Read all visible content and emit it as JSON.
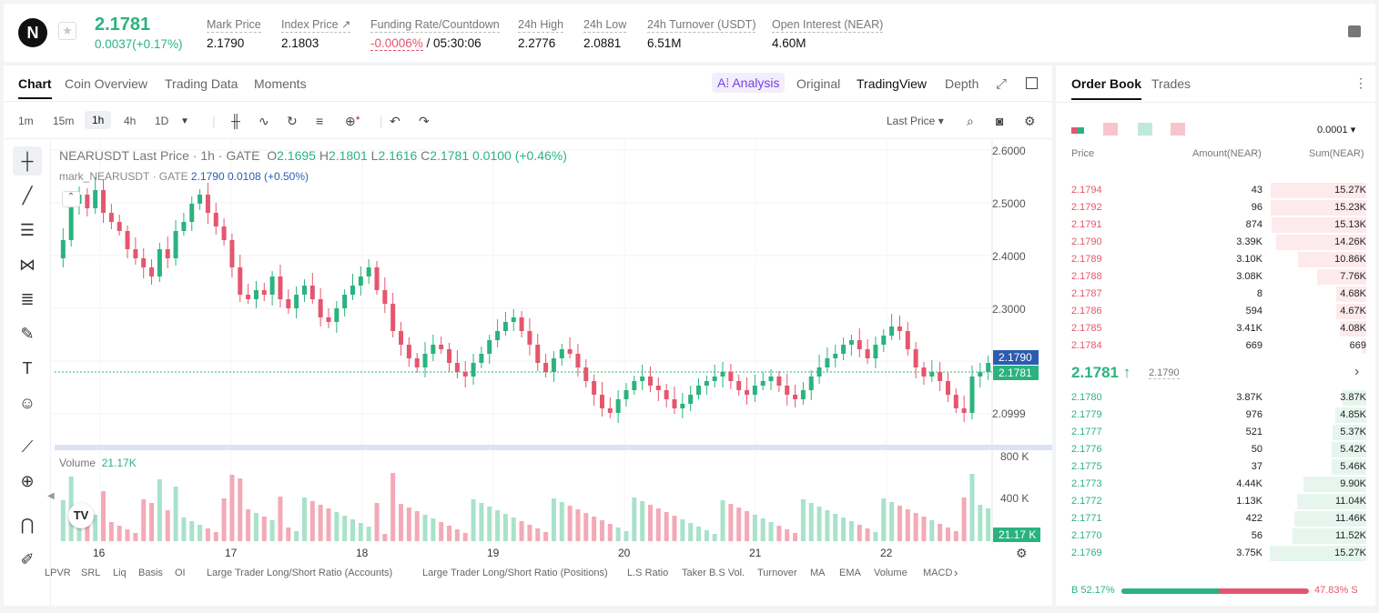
{
  "header": {
    "logo": "N",
    "last_price": "2.1781",
    "change": "0.0037(+0.17%)",
    "stats": [
      {
        "label": "Mark Price",
        "value": "2.1790",
        "x": 223
      },
      {
        "label": "Index Price ↗",
        "value": "2.1803",
        "x": 305
      },
      {
        "label": "Funding Rate/Countdown",
        "value_red": "-0.0006%",
        "value": " / 05:30:06",
        "x": 403
      },
      {
        "label": "24h High",
        "value": "2.2776",
        "x": 565
      },
      {
        "label": "24h Low",
        "value": "2.0881",
        "x": 637
      },
      {
        "label": "24h Turnover (USDT)",
        "value": "6.51M",
        "x": 707
      },
      {
        "label": "Open Interest (NEAR)",
        "value": "4.60M",
        "x": 844
      }
    ]
  },
  "tabs": [
    "Chart",
    "Coin Overview",
    "Trading Data",
    "Moments"
  ],
  "view_tabs": {
    "ai": "A⁞ Analysis",
    "original": "Original",
    "tradingview": "TradingView",
    "depth": "Depth"
  },
  "timeframes": [
    "1m",
    "15m",
    "1h",
    "4h",
    "1D"
  ],
  "last_price_select": "Last Price",
  "legend": {
    "symbol": "NEARUSDT Last Price · 1h · GATE",
    "o": "2.1695",
    "h": "2.1801",
    "l": "2.1616",
    "c": "2.1781",
    "chg": "0.0100 (+0.46%)",
    "mark": "mark_NEARUSDT · GATE",
    "mark_val": "2.1790  0.0108  (+0.50%)"
  },
  "y_axis": [
    "2.6000",
    "2.5000",
    "2.4000",
    "2.3000",
    "2.0999"
  ],
  "price_labels": {
    "mark": "2.1790",
    "last": "2.1781"
  },
  "volume": {
    "label": "Volume",
    "value": "21.17K",
    "axis": [
      "800 K",
      "400 K"
    ],
    "tag": "21.17 K"
  },
  "x_axis": [
    "16",
    "17",
    "18",
    "19",
    "20",
    "21",
    "22"
  ],
  "indicators": [
    "LPVR",
    "SRL",
    "Liq",
    "Basis",
    "OI",
    "Large Trader Long/Short Ratio (Accounts)",
    "Large Trader Long/Short Ratio (Positions)",
    "L.S Ratio",
    "Taker B.S Vol.",
    "Turnover",
    "MA",
    "EMA",
    "Volume",
    "MACD"
  ],
  "orderbook": {
    "tabs": [
      "Order Book",
      "Trades"
    ],
    "precision": "0.0001",
    "headers": [
      "Price",
      "Amount(NEAR)",
      "Sum(NEAR)"
    ],
    "asks": [
      [
        "2.1794",
        "43",
        "15.27K",
        0.99
      ],
      [
        "2.1792",
        "96",
        "15.23K",
        0.99
      ],
      [
        "2.1791",
        "874",
        "15.13K",
        0.98
      ],
      [
        "2.1790",
        "3.39K",
        "14.26K",
        0.93
      ],
      [
        "2.1789",
        "3.10K",
        "10.86K",
        0.71
      ],
      [
        "2.1788",
        "3.08K",
        "7.76K",
        0.51
      ],
      [
        "2.1787",
        "8",
        "4.68K",
        0.31
      ],
      [
        "2.1786",
        "594",
        "4.67K",
        0.31
      ],
      [
        "2.1785",
        "3.41K",
        "4.08K",
        0.27
      ],
      [
        "2.1784",
        "669",
        "669",
        0.05
      ]
    ],
    "mid": "2.1781 ↑",
    "mid_mark": "2.1790",
    "bids": [
      [
        "2.1780",
        "3.87K",
        "3.87K",
        0.25
      ],
      [
        "2.1779",
        "976",
        "4.85K",
        0.32
      ],
      [
        "2.1777",
        "521",
        "5.37K",
        0.35
      ],
      [
        "2.1776",
        "50",
        "5.42K",
        0.36
      ],
      [
        "2.1775",
        "37",
        "5.46K",
        0.36
      ],
      [
        "2.1773",
        "4.44K",
        "9.90K",
        0.65
      ],
      [
        "2.1772",
        "1.13K",
        "11.04K",
        0.72
      ],
      [
        "2.1771",
        "422",
        "11.46K",
        0.75
      ],
      [
        "2.1770",
        "56",
        "11.52K",
        0.76
      ],
      [
        "2.1769",
        "3.75K",
        "15.27K",
        1.0
      ]
    ],
    "buy_ratio": "B 52.17%",
    "sell_ratio": "47.83% S",
    "buy_fraction": 0.5217
  },
  "colors": {
    "up": "#2bb37f",
    "down": "#e5566e"
  }
}
